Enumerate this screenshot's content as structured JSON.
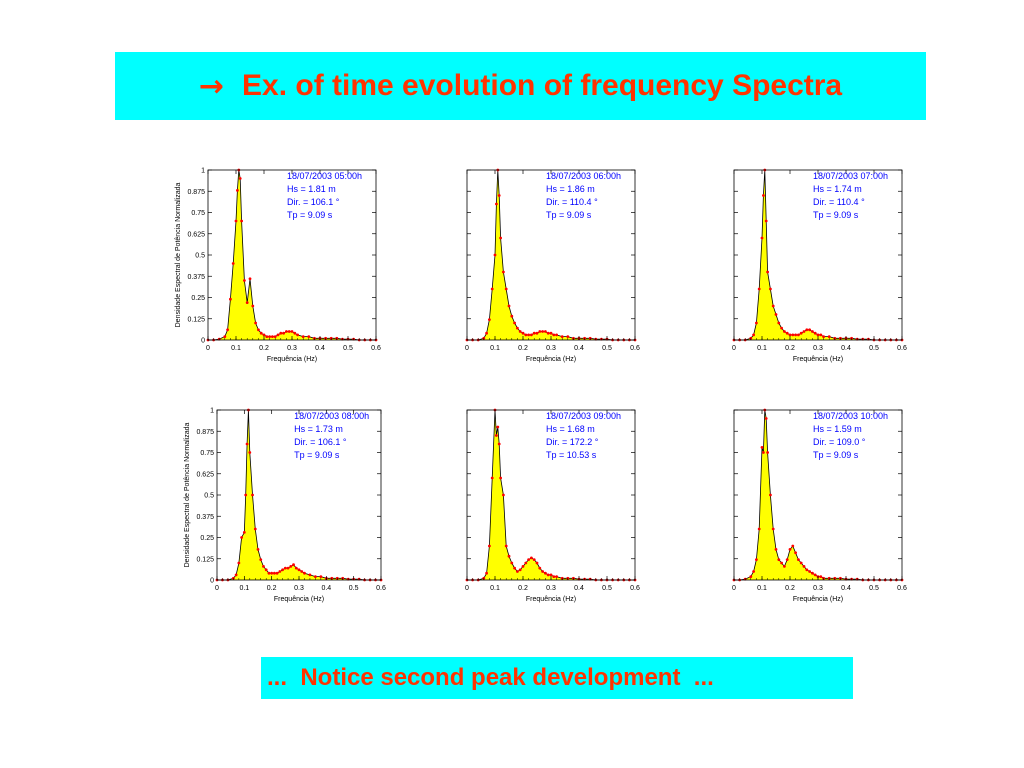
{
  "slide": {
    "title_arrow": "→",
    "title": "Ex. of time evolution of frequency Spectra",
    "note": "...  Notice second peak development  ..."
  },
  "colors": {
    "banner": "#00ffff",
    "title_text": "#ff3300",
    "fill": "#ffff00",
    "line": "#000000",
    "points": "#ff0000",
    "annotation": "#0000ff"
  },
  "chart_data": [
    {
      "type": "area",
      "xlabel": "Frequência (Hz)",
      "ylabel": "Densidade Espectral de Potência Normalizada",
      "xlim": [
        0,
        0.6
      ],
      "ylim": [
        0,
        1
      ],
      "xticks": [
        "0",
        "0.1",
        "0.2",
        "0.3",
        "0.4",
        "0.5",
        "0.6"
      ],
      "yticks": [
        "0",
        "0.125",
        "0.25",
        "0.375",
        "0.5",
        "0.625",
        "0.75",
        "0.875",
        "1"
      ],
      "annotation": [
        "18/07/2003 05:00h",
        "Hs = 1.81 m",
        "Dir. = 106.1 °",
        "Tp = 9.09 s"
      ],
      "x": [
        0.0,
        0.02,
        0.04,
        0.06,
        0.07,
        0.08,
        0.09,
        0.1,
        0.105,
        0.11,
        0.115,
        0.12,
        0.13,
        0.14,
        0.15,
        0.16,
        0.17,
        0.18,
        0.19,
        0.2,
        0.21,
        0.22,
        0.23,
        0.24,
        0.25,
        0.26,
        0.27,
        0.28,
        0.29,
        0.3,
        0.31,
        0.32,
        0.34,
        0.36,
        0.38,
        0.4,
        0.42,
        0.44,
        0.46,
        0.48,
        0.5,
        0.52,
        0.54,
        0.56,
        0.58,
        0.6
      ],
      "y": [
        0,
        0,
        0.005,
        0.02,
        0.06,
        0.24,
        0.45,
        0.7,
        0.88,
        1.0,
        0.95,
        0.7,
        0.35,
        0.22,
        0.36,
        0.2,
        0.1,
        0.06,
        0.04,
        0.03,
        0.02,
        0.02,
        0.02,
        0.02,
        0.03,
        0.04,
        0.04,
        0.05,
        0.05,
        0.05,
        0.04,
        0.03,
        0.02,
        0.02,
        0.01,
        0.01,
        0.01,
        0.01,
        0.01,
        0.005,
        0.005,
        0.005,
        0,
        0,
        0,
        0
      ]
    },
    {
      "type": "area",
      "xlabel": "Frequência (Hz)",
      "ylabel": "",
      "xlim": [
        0,
        0.6
      ],
      "ylim": [
        0,
        1
      ],
      "xticks": [
        "0",
        "0.1",
        "0.2",
        "0.3",
        "0.4",
        "0.5",
        "0.6"
      ],
      "yticks": [],
      "annotation": [
        "18/07/2003 06:00h",
        "Hs = 1.86 m",
        "Dir. = 110.4 °",
        "Tp = 9.09 s"
      ],
      "x": [
        0.0,
        0.02,
        0.04,
        0.06,
        0.07,
        0.08,
        0.09,
        0.1,
        0.105,
        0.11,
        0.115,
        0.12,
        0.13,
        0.14,
        0.15,
        0.16,
        0.17,
        0.18,
        0.19,
        0.2,
        0.21,
        0.22,
        0.23,
        0.24,
        0.25,
        0.26,
        0.27,
        0.28,
        0.29,
        0.3,
        0.31,
        0.32,
        0.34,
        0.36,
        0.38,
        0.4,
        0.42,
        0.44,
        0.46,
        0.48,
        0.5,
        0.52,
        0.54,
        0.56,
        0.58,
        0.6
      ],
      "y": [
        0,
        0,
        0,
        0.01,
        0.04,
        0.12,
        0.3,
        0.5,
        0.8,
        1.0,
        0.85,
        0.6,
        0.4,
        0.3,
        0.2,
        0.14,
        0.1,
        0.07,
        0.05,
        0.04,
        0.03,
        0.03,
        0.03,
        0.04,
        0.04,
        0.05,
        0.05,
        0.05,
        0.04,
        0.04,
        0.03,
        0.03,
        0.02,
        0.02,
        0.01,
        0.01,
        0.01,
        0.01,
        0.005,
        0.005,
        0.005,
        0,
        0,
        0,
        0,
        0
      ]
    },
    {
      "type": "area",
      "xlabel": "Frequência (Hz)",
      "ylabel": "",
      "xlim": [
        0,
        0.6
      ],
      "ylim": [
        0,
        1
      ],
      "xticks": [
        "0",
        "0.1",
        "0.2",
        "0.3",
        "0.4",
        "0.5",
        "0.6"
      ],
      "yticks": [],
      "annotation": [
        "18/07/2003 07:00h",
        "Hs = 1.74 m",
        "Dir. = 110.4 °",
        "Tp = 9.09 s"
      ],
      "x": [
        0.0,
        0.02,
        0.04,
        0.06,
        0.07,
        0.08,
        0.09,
        0.1,
        0.105,
        0.11,
        0.115,
        0.12,
        0.13,
        0.14,
        0.15,
        0.16,
        0.17,
        0.18,
        0.19,
        0.2,
        0.21,
        0.22,
        0.23,
        0.24,
        0.25,
        0.26,
        0.27,
        0.28,
        0.29,
        0.3,
        0.31,
        0.32,
        0.34,
        0.36,
        0.38,
        0.4,
        0.42,
        0.44,
        0.46,
        0.48,
        0.5,
        0.52,
        0.54,
        0.56,
        0.58,
        0.6
      ],
      "y": [
        0,
        0,
        0,
        0.01,
        0.03,
        0.1,
        0.3,
        0.6,
        0.85,
        1.0,
        0.7,
        0.4,
        0.3,
        0.2,
        0.15,
        0.1,
        0.07,
        0.05,
        0.04,
        0.03,
        0.03,
        0.03,
        0.03,
        0.04,
        0.05,
        0.06,
        0.06,
        0.05,
        0.04,
        0.03,
        0.03,
        0.02,
        0.02,
        0.01,
        0.01,
        0.01,
        0.01,
        0.005,
        0.005,
        0.005,
        0,
        0,
        0,
        0,
        0,
        0
      ]
    },
    {
      "type": "area",
      "xlabel": "Frequência (Hz)",
      "ylabel": "Densidade Espectral de Potência Normalizada",
      "xlim": [
        0,
        0.6
      ],
      "ylim": [
        0,
        1
      ],
      "xticks": [
        "0",
        "0.1",
        "0.2",
        "0.3",
        "0.4",
        "0.5",
        "0.6"
      ],
      "yticks": [
        "0",
        "0.125",
        "0.25",
        "0.375",
        "0.5",
        "0.625",
        "0.75",
        "0.875",
        "1"
      ],
      "annotation": [
        "18/07/2003 08:00h",
        "Hs = 1.73 m",
        "Dir. = 106.1 °",
        "Tp = 9.09 s"
      ],
      "x": [
        0.0,
        0.02,
        0.04,
        0.06,
        0.07,
        0.08,
        0.09,
        0.1,
        0.105,
        0.11,
        0.115,
        0.12,
        0.13,
        0.14,
        0.15,
        0.16,
        0.17,
        0.18,
        0.19,
        0.2,
        0.21,
        0.22,
        0.23,
        0.24,
        0.25,
        0.26,
        0.27,
        0.28,
        0.29,
        0.3,
        0.31,
        0.32,
        0.34,
        0.36,
        0.38,
        0.4,
        0.42,
        0.44,
        0.46,
        0.48,
        0.5,
        0.52,
        0.54,
        0.56,
        0.58,
        0.6
      ],
      "y": [
        0,
        0,
        0,
        0.01,
        0.03,
        0.1,
        0.25,
        0.28,
        0.5,
        0.8,
        1.0,
        0.75,
        0.5,
        0.3,
        0.18,
        0.12,
        0.08,
        0.06,
        0.04,
        0.04,
        0.04,
        0.04,
        0.05,
        0.06,
        0.07,
        0.07,
        0.08,
        0.09,
        0.07,
        0.06,
        0.05,
        0.04,
        0.03,
        0.02,
        0.02,
        0.01,
        0.01,
        0.01,
        0.01,
        0.005,
        0.005,
        0.005,
        0,
        0,
        0,
        0
      ]
    },
    {
      "type": "area",
      "xlabel": "Frequência (Hz)",
      "ylabel": "",
      "xlim": [
        0,
        0.6
      ],
      "ylim": [
        0,
        1
      ],
      "xticks": [
        "0",
        "0.1",
        "0.2",
        "0.3",
        "0.4",
        "0.5",
        "0.6"
      ],
      "yticks": [],
      "annotation": [
        "18/07/2003 09:00h",
        "Hs = 1.68 m",
        "Dir. = 172.2 °",
        "Tp = 10.53 s"
      ],
      "x": [
        0.0,
        0.02,
        0.04,
        0.06,
        0.07,
        0.08,
        0.09,
        0.1,
        0.105,
        0.11,
        0.115,
        0.12,
        0.13,
        0.14,
        0.15,
        0.16,
        0.17,
        0.18,
        0.19,
        0.2,
        0.21,
        0.22,
        0.23,
        0.24,
        0.25,
        0.26,
        0.27,
        0.28,
        0.29,
        0.3,
        0.31,
        0.32,
        0.34,
        0.36,
        0.38,
        0.4,
        0.42,
        0.44,
        0.46,
        0.48,
        0.5,
        0.52,
        0.54,
        0.56,
        0.58,
        0.6
      ],
      "y": [
        0,
        0,
        0,
        0.01,
        0.04,
        0.2,
        0.6,
        1.0,
        0.85,
        0.9,
        0.8,
        0.6,
        0.5,
        0.2,
        0.14,
        0.1,
        0.07,
        0.05,
        0.06,
        0.08,
        0.1,
        0.12,
        0.13,
        0.12,
        0.1,
        0.07,
        0.05,
        0.04,
        0.03,
        0.03,
        0.02,
        0.02,
        0.01,
        0.01,
        0.01,
        0.005,
        0.005,
        0.005,
        0,
        0,
        0,
        0,
        0,
        0,
        0,
        0
      ]
    },
    {
      "type": "area",
      "xlabel": "Frequência (Hz)",
      "ylabel": "",
      "xlim": [
        0,
        0.6
      ],
      "ylim": [
        0,
        1
      ],
      "xticks": [
        "0",
        "0.1",
        "0.2",
        "0.3",
        "0.4",
        "0.5",
        "0.6"
      ],
      "yticks": [],
      "annotation": [
        "18/07/2003 10:00h",
        "Hs = 1.59 m",
        "Dir. = 109.0 °",
        "Tp = 9.09 s"
      ],
      "x": [
        0.0,
        0.02,
        0.04,
        0.06,
        0.07,
        0.08,
        0.09,
        0.1,
        0.105,
        0.11,
        0.115,
        0.12,
        0.13,
        0.14,
        0.15,
        0.16,
        0.17,
        0.18,
        0.19,
        0.2,
        0.21,
        0.22,
        0.23,
        0.24,
        0.25,
        0.26,
        0.27,
        0.28,
        0.29,
        0.3,
        0.31,
        0.32,
        0.34,
        0.36,
        0.38,
        0.4,
        0.42,
        0.44,
        0.46,
        0.48,
        0.5,
        0.52,
        0.54,
        0.56,
        0.58,
        0.6
      ],
      "y": [
        0,
        0,
        0.005,
        0.02,
        0.05,
        0.12,
        0.3,
        0.78,
        0.75,
        1.0,
        0.95,
        0.75,
        0.5,
        0.3,
        0.18,
        0.12,
        0.1,
        0.08,
        0.12,
        0.18,
        0.2,
        0.16,
        0.12,
        0.1,
        0.08,
        0.06,
        0.05,
        0.04,
        0.03,
        0.02,
        0.02,
        0.01,
        0.01,
        0.01,
        0.01,
        0.005,
        0.005,
        0.005,
        0,
        0,
        0,
        0,
        0,
        0,
        0,
        0
      ]
    }
  ]
}
